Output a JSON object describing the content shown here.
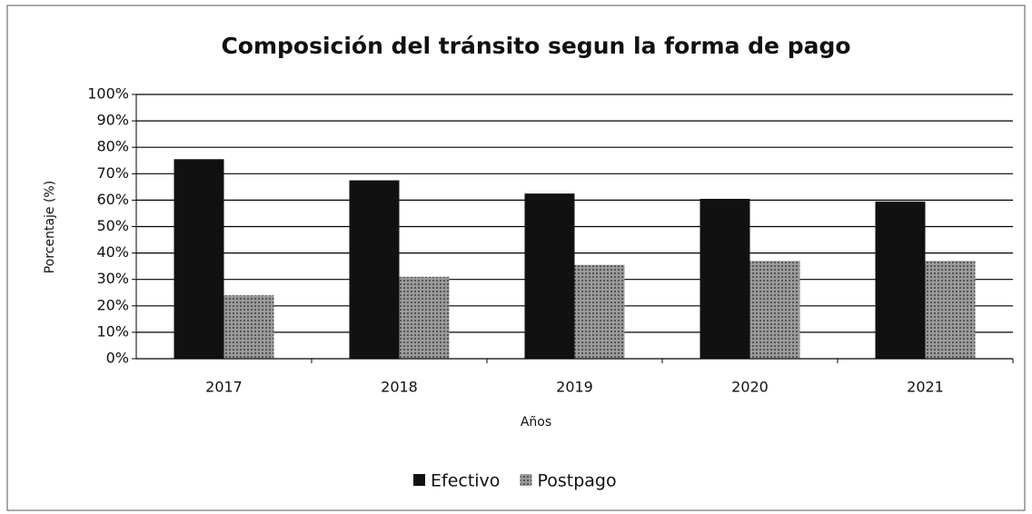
{
  "chart_data": {
    "type": "bar",
    "title": "Composición del tránsito segun la forma de pago",
    "x_label": "Años",
    "y_label": "Porcentaje (%)",
    "categories": [
      "2017",
      "2018",
      "2019",
      "2020",
      "2021"
    ],
    "series": [
      {
        "name": "Efectivo",
        "color": "#111111",
        "values": [
          75.5,
          67.5,
          62.5,
          60.5,
          59.5
        ]
      },
      {
        "name": "Postpago",
        "color": "#9a9a9a",
        "values": [
          24,
          31,
          35.5,
          37,
          37
        ]
      }
    ],
    "ylim": [
      0,
      100
    ],
    "yticks": [
      {
        "value": 0,
        "label": "0%"
      },
      {
        "value": 10,
        "label": "10%"
      },
      {
        "value": 20,
        "label": "20%"
      },
      {
        "value": 30,
        "label": "30%"
      },
      {
        "value": 40,
        "label": "40%"
      },
      {
        "value": 50,
        "label": "50%"
      },
      {
        "value": 60,
        "label": "60%"
      },
      {
        "value": 70,
        "label": "70%"
      },
      {
        "value": 80,
        "label": "80%"
      },
      {
        "value": 90,
        "label": "90%"
      },
      {
        "value": 100,
        "label": "100%"
      }
    ],
    "grid": true,
    "legend": "bottom"
  }
}
